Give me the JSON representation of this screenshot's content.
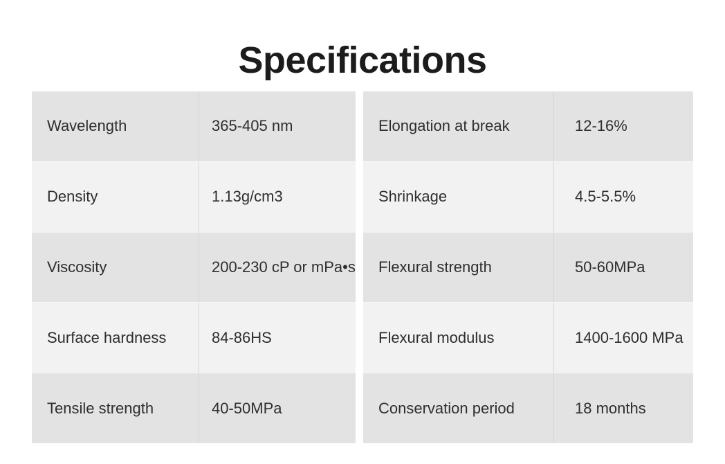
{
  "page": {
    "title": "Specifications"
  },
  "spec_table": {
    "left_column": [
      {
        "label": "Wavelength",
        "value": "365-405 nm"
      },
      {
        "label": "Density",
        "value": "1.13g/cm3"
      },
      {
        "label": "Viscosity",
        "value": "200-230 cP or mPa•s"
      },
      {
        "label": "Surface hardness",
        "value": "84-86HS"
      },
      {
        "label": "Tensile strength",
        "value": "40-50MPa"
      }
    ],
    "right_column": [
      {
        "label": "Elongation at break",
        "value": "12-16%"
      },
      {
        "label": "Shrinkage",
        "value": "4.5-5.5%"
      },
      {
        "label": "Flexural strength",
        "value": "50-60MPa"
      },
      {
        "label": "Flexural modulus",
        "value": "1400-1600 MPa"
      },
      {
        "label": "Conservation period",
        "value": "18 months"
      }
    ]
  },
  "colors": {
    "background": "#ffffff",
    "row_dark": "#e3e3e4",
    "row_light": "#f2f2f2",
    "column_divider": "#d6d6d6",
    "body_text": "#2e2e2e",
    "title_text": "#1c1c1c"
  }
}
